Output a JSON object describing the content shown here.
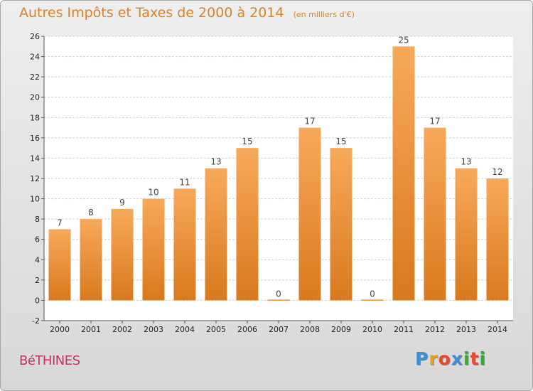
{
  "header": {
    "title": "Autres Impôts et Taxes de 2000 à 2014",
    "unit": "(en milliers d'€)"
  },
  "footer": {
    "commune": "BéTHINES",
    "brand_letters": [
      "P",
      "r",
      "o",
      "x",
      "i",
      "t",
      "i"
    ],
    "brand_colors": [
      "#3c8fd6",
      "#e8a31c",
      "#e84a2c",
      "#3c8fd6",
      "#3ca83c",
      "#e84a2c",
      "#3ca83c"
    ]
  },
  "colors": {
    "bar_top": "#f7a95a",
    "bar_bottom": "#d87a1e",
    "title": "#d9822b"
  },
  "chart_data": {
    "type": "bar",
    "title": "Autres Impôts et Taxes de 2000 à 2014",
    "xlabel": "",
    "ylabel": "",
    "categories": [
      "2000",
      "2001",
      "2002",
      "2003",
      "2004",
      "2005",
      "2006",
      "2007",
      "2008",
      "2009",
      "2010",
      "2011",
      "2012",
      "2013",
      "2014"
    ],
    "values": [
      7,
      8,
      9,
      10,
      11,
      13,
      15,
      0,
      17,
      15,
      0,
      25,
      17,
      13,
      12
    ],
    "ylim": [
      -2,
      26
    ],
    "yticks": [
      -2,
      0,
      2,
      4,
      6,
      8,
      10,
      12,
      14,
      16,
      18,
      20,
      22,
      24,
      26
    ],
    "grid": true
  }
}
